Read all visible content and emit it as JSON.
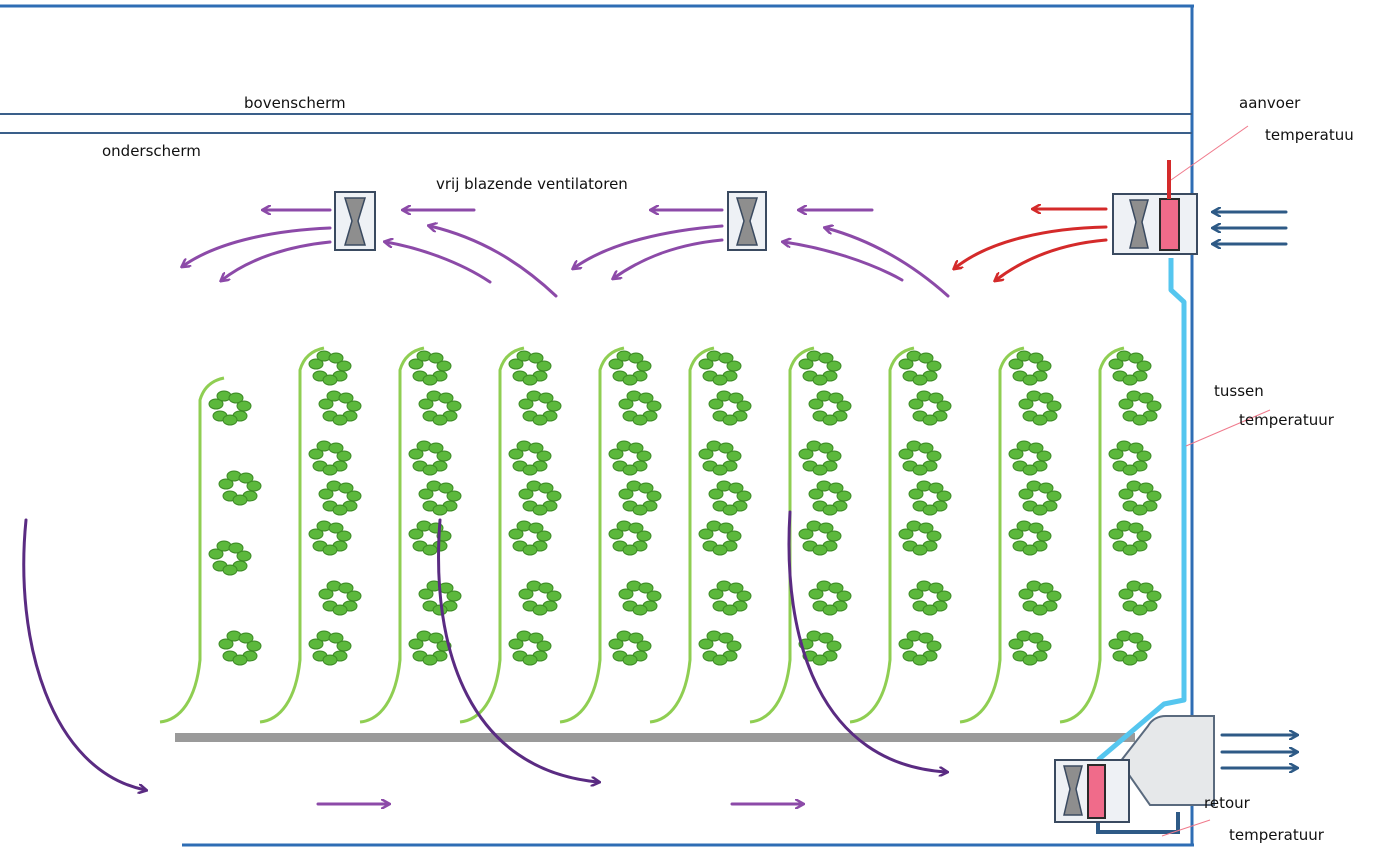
{
  "labels": {
    "top_screen": "bovenscherm",
    "bottom_screen": "onderscherm",
    "fans": "vrij blazende ventilatoren",
    "supply_temp_line1": "aanvoer",
    "supply_temp_line2": "temperatuu",
    "mid_temp_line1": "tussen",
    "mid_temp_line2": "temperatuur",
    "return_temp_line1": "retour",
    "return_temp_line2": "temperatuur"
  },
  "colors": {
    "wall": "#2e6db4",
    "screen": "#3a5f8a",
    "pipe": "#55c6ef",
    "hot_air": "#d42a2a",
    "circulating_air": "#8c4aa8",
    "fresh_air": "#2e5a86",
    "return_curve": "#5a2b82",
    "plant_stem": "#8fce52",
    "plant_leaf": "#5cb83c",
    "floor": "#9a9a9a",
    "heater": "#f06b8a"
  },
  "icons": {
    "fan": "hourglass-fan-icon",
    "heater": "heating-element-icon",
    "arrow": "flow-arrow-icon",
    "plant": "tomato-plant-icon"
  }
}
